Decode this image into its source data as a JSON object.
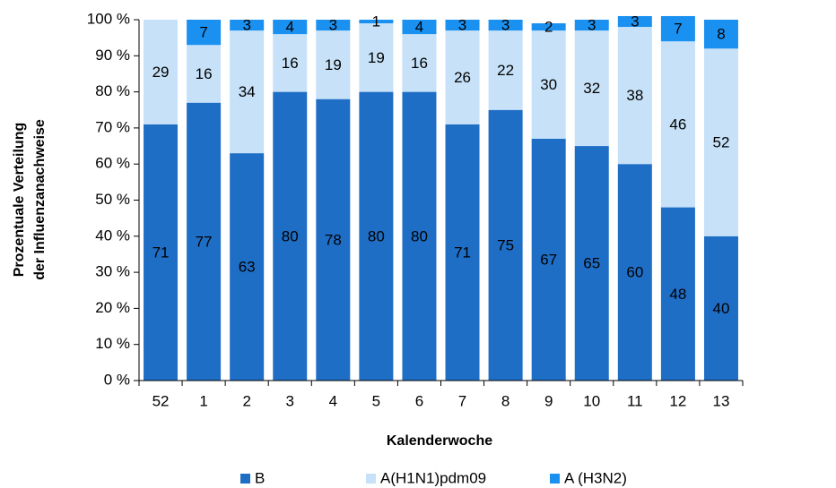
{
  "chart_data": {
    "type": "stacked-bar",
    "x_label": "Kalenderwoche",
    "y_label": [
      "Prozentuale Verteilung",
      "der Influenzanachweise"
    ],
    "categories": [
      "52",
      "1",
      "2",
      "3",
      "4",
      "5",
      "6",
      "7",
      "8",
      "9",
      "10",
      "11",
      "12",
      "13"
    ],
    "series": [
      {
        "name": "B",
        "color": "#1f6ec6",
        "values": [
          71,
          77,
          63,
          80,
          78,
          80,
          80,
          71,
          75,
          67,
          65,
          60,
          48,
          40
        ]
      },
      {
        "name": "A(H1N1)pdm09",
        "color": "#c6e1f8",
        "values": [
          29,
          16,
          34,
          16,
          19,
          19,
          16,
          26,
          22,
          30,
          32,
          38,
          46,
          52
        ]
      },
      {
        "name": "A (H3N2)",
        "color": "#1a90f0",
        "values": [
          null,
          7,
          3,
          4,
          3,
          1,
          4,
          3,
          3,
          2,
          3,
          3,
          7,
          8
        ]
      }
    ],
    "ylim": [
      0,
      100
    ],
    "yticks": [
      {
        "value": 0,
        "label": "0 %"
      },
      {
        "value": 10,
        "label": "10 %"
      },
      {
        "value": 20,
        "label": "20 %"
      },
      {
        "value": 30,
        "label": "30 %"
      },
      {
        "value": 40,
        "label": "40 %"
      },
      {
        "value": 50,
        "label": "50 %"
      },
      {
        "value": 60,
        "label": "60 %"
      },
      {
        "value": 70,
        "label": "70 %"
      },
      {
        "value": 80,
        "label": "80 %"
      },
      {
        "value": 90,
        "label": "90 %"
      },
      {
        "value": 100,
        "label": "100 %"
      }
    ],
    "legend": "bottom"
  }
}
